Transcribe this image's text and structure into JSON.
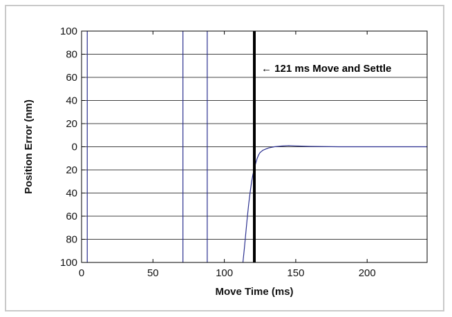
{
  "chart_data": {
    "type": "line",
    "title": "",
    "xlabel": "Move Time (ms)",
    "ylabel": "Position Error (nm)",
    "xlim": [
      0,
      242
    ],
    "ylim": [
      -100,
      100
    ],
    "x_ticks": [
      0,
      50,
      100,
      150,
      200
    ],
    "x_tick_labels": [
      "0",
      "50",
      "100",
      "150",
      "200"
    ],
    "y_ticks": [
      100,
      80,
      60,
      40,
      20,
      0,
      -20,
      -40,
      -60,
      -80,
      -100
    ],
    "y_tick_labels": [
      "100",
      "80",
      "60",
      "40",
      "20",
      "0",
      "20",
      "40",
      "60",
      "80",
      "100"
    ],
    "grid": "horizontal",
    "series": [
      {
        "color": "#2a2f8f",
        "segments": [
          [
            [
              4,
              100
            ],
            [
              4,
              -100
            ]
          ],
          [
            [
              71,
              100
            ],
            [
              71,
              -100
            ]
          ],
          [
            [
              88,
              100
            ],
            [
              88,
              -100
            ]
          ],
          [
            [
              113,
              -100
            ],
            [
              114,
              -88
            ],
            [
              115,
              -75
            ],
            [
              116,
              -62
            ],
            [
              117,
              -50
            ],
            [
              118,
              -40
            ],
            [
              119,
              -31
            ],
            [
              120,
              -24
            ],
            [
              121,
              -19
            ],
            [
              122,
              -14
            ],
            [
              123,
              -10
            ],
            [
              124,
              -7
            ],
            [
              125,
              -5
            ],
            [
              127,
              -3
            ],
            [
              129,
              -2
            ],
            [
              131,
              -1
            ],
            [
              135,
              0
            ],
            [
              140,
              0.6
            ],
            [
              145,
              1
            ],
            [
              150,
              0.7
            ],
            [
              160,
              0.3
            ],
            [
              180,
              0
            ],
            [
              200,
              0
            ],
            [
              220,
              0
            ],
            [
              242,
              0
            ]
          ]
        ]
      }
    ],
    "markers": [
      {
        "x": 121,
        "color": "#000000",
        "label": "← 121 ms Move and Settle"
      }
    ]
  }
}
